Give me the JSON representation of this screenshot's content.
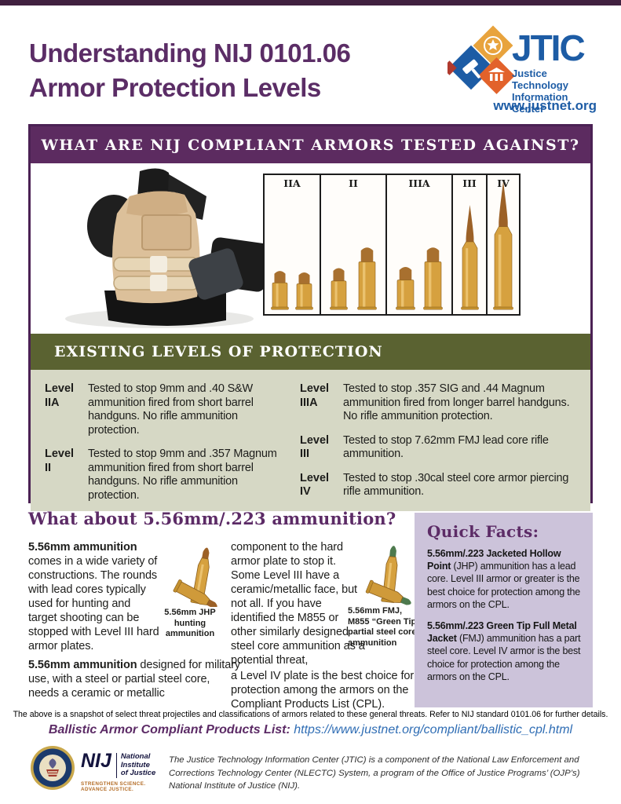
{
  "colors": {
    "title_purple": "#5b2d66",
    "banner_purple": "#5c2b60",
    "banner_olive": "#5a6231",
    "levels_bg": "#d6d8c5",
    "quick_facts_bg": "#ccc3da",
    "jtic_blue": "#1d5ca5",
    "link_blue": "#2f6db4"
  },
  "header": {
    "title_line1": "Understanding NIJ 0101.06",
    "title_line2": "Armor Protection Levels",
    "logo": {
      "acronym": "JTIC",
      "name_line1": "Justice Technology",
      "name_line2": "Information Center",
      "url": "www.justnet.org"
    }
  },
  "banner1": "WHAT ARE NIJ COMPLIANT ARMORS TESTED AGAINST?",
  "banner2": "EXISTING LEVELS OF PROTECTION",
  "bullet_chart": {
    "panels": [
      {
        "label": "IIA",
        "width": 70,
        "bullets": [
          {
            "type": "pistol",
            "h": 58,
            "w": 19
          },
          {
            "type": "pistol",
            "h": 56,
            "w": 19
          }
        ]
      },
      {
        "label": "II",
        "width": 82,
        "bullets": [
          {
            "type": "pistol",
            "h": 62,
            "w": 19
          },
          {
            "type": "magnum",
            "h": 88,
            "w": 21
          }
        ]
      },
      {
        "label": "IIIA",
        "width": 82,
        "bullets": [
          {
            "type": "pistol",
            "h": 64,
            "w": 21
          },
          {
            "type": "magnum",
            "h": 88,
            "w": 21
          }
        ]
      },
      {
        "label": "III",
        "width": 42,
        "bullets": [
          {
            "type": "rifle",
            "h": 136,
            "w": 19
          }
        ]
      },
      {
        "label": "IV",
        "width": 40,
        "bullets": [
          {
            "type": "rifle",
            "h": 166,
            "w": 22
          }
        ]
      }
    ]
  },
  "levels": [
    {
      "label_word": "Level",
      "label_num": "IIA",
      "desc": "Tested to stop 9mm and .40 S&W ammunition fired from short barrel handguns. No rifle ammunition protection."
    },
    {
      "label_word": "Level",
      "label_num": "II",
      "desc": "Tested to stop 9mm and .357 Magnum ammunition fired from short barrel handguns. No rifle ammunition protection."
    },
    {
      "label_word": "Level",
      "label_num": "IIIA",
      "desc": "Tested to stop .357 SIG and .44 Magnum ammunition fired from longer barrel handguns. No rifle ammunition protection."
    },
    {
      "label_word": "Level",
      "label_num": "III",
      "desc": "Tested to stop 7.62mm FMJ lead core rifle ammunition."
    },
    {
      "label_word": "Level",
      "label_num": "IV",
      "desc": "Tested to stop .30cal steel core armor piercing rifle ammunition."
    }
  ],
  "section2": {
    "heading": "What about 5.56mm/.223 ammunition?",
    "para1_bold": "5.56mm ammunition",
    "para1_rest": " comes in a wide variety of constructions. The rounds with lead cores typically used for hunting and target shooting can be stopped with Level III hard armor plates.",
    "para2_bold": "5.56mm ammunition",
    "para2_rest": " designed for military use, with a steel or partial steel core, needs a ceramic or metallic",
    "para3": "component to the hard armor plate to stop it. Some Level III have a ceramic/metallic face, but not all. If you have identified the M855 or other similarly designed steel core ammunition as a potential threat,",
    "para4": "a Level IV plate is the best choice for protection among the armors on the Compliant Products List (CPL).",
    "caption1": "5.56mm JHP hunting ammunition",
    "caption2": "5.56mm FMJ, M855 “Green Tip” partial steel core ammunition"
  },
  "quick_facts": {
    "title": "Quick Facts:",
    "facts": [
      {
        "bold": "5.56mm/.223 Jacketed Hollow Point",
        "rest": " (JHP) ammunition has a lead core. Level III armor or greater is the best choice for protection among the armors on the CPL."
      },
      {
        "bold": "5.56mm/.223 Green Tip Full Metal Jacket",
        "rest": " (FMJ) ammunition has a part steel core. Level IV armor is the best choice for protection among the armors on the CPL."
      }
    ]
  },
  "footer": {
    "note": "The above is a snapshot of select threat projectiles and classifications of armors related to these general threats. Refer to NIJ standard 0101.06 for further details.",
    "cpl_label": "Ballistic Armor Compliant Products List:",
    "cpl_url": "https://www.justnet.org/compliant/ballistic_cpl.html",
    "nij": {
      "acronym": "NIJ",
      "name_line1": "National Institute",
      "name_line2": "of Justice",
      "tagline": "STRENGTHEN SCIENCE. ADVANCE JUSTICE."
    },
    "description": "The Justice Technology Information Center (JTIC) is a component of the National Law Enforcement and Corrections Technology Center (NLECTC) System, a program of the Office of Justice Programs’ (OJP’s) National Institute of Justice (NIJ)."
  }
}
